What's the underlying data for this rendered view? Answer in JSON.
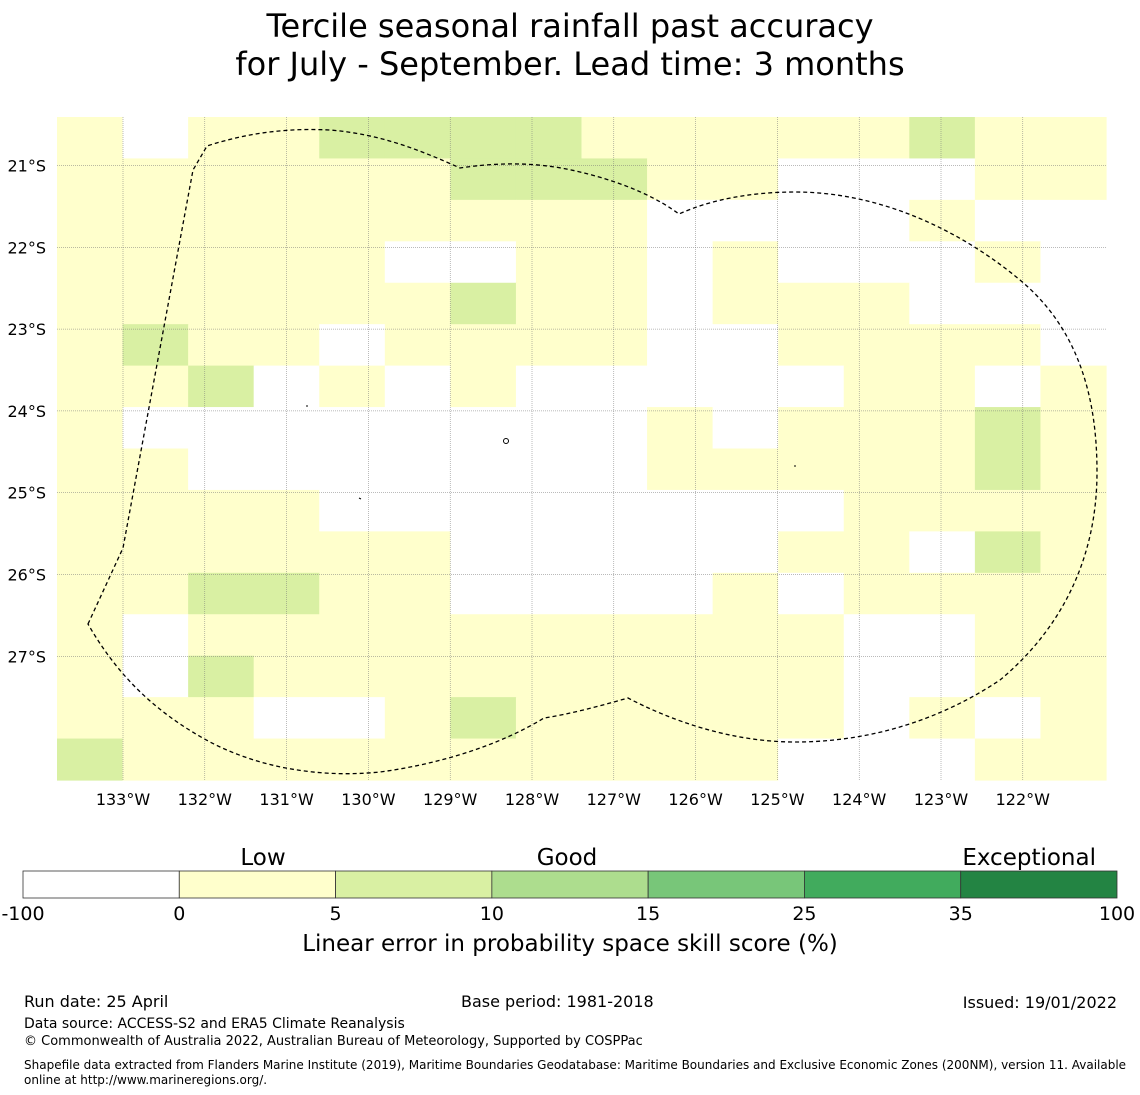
{
  "title": {
    "line1": "Tercile seasonal rainfall past accuracy",
    "line2": "for July - September. Lead time: 3 months"
  },
  "map": {
    "lon_labels": [
      "133°W",
      "132°W",
      "131°W",
      "130°W",
      "129°W",
      "128°W",
      "127°W",
      "126°W",
      "125°W",
      "124°W",
      "123°W",
      "122°W"
    ],
    "lat_labels": [
      "21°S",
      "22°S",
      "23°S",
      "24°S",
      "25°S",
      "26°S",
      "27°S"
    ],
    "cell_values": [
      [
        1,
        0,
        1,
        1,
        2,
        2,
        2,
        2,
        1,
        1,
        1,
        1,
        1,
        2,
        1,
        1
      ],
      [
        1,
        1,
        1,
        1,
        1,
        1,
        2,
        2,
        2,
        1,
        1,
        0,
        0,
        0,
        1,
        1
      ],
      [
        1,
        1,
        1,
        1,
        1,
        1,
        1,
        1,
        1,
        0,
        0,
        0,
        0,
        1,
        0,
        0
      ],
      [
        1,
        1,
        1,
        1,
        1,
        0,
        0,
        1,
        1,
        0,
        1,
        0,
        0,
        0,
        1,
        0
      ],
      [
        1,
        1,
        1,
        1,
        1,
        1,
        2,
        1,
        1,
        0,
        1,
        1,
        1,
        0,
        0,
        0
      ],
      [
        1,
        2,
        1,
        1,
        0,
        1,
        1,
        1,
        1,
        0,
        0,
        1,
        1,
        1,
        1,
        0
      ],
      [
        1,
        1,
        2,
        0,
        1,
        0,
        1,
        0,
        0,
        0,
        0,
        0,
        1,
        1,
        0,
        1
      ],
      [
        1,
        0,
        0,
        0,
        0,
        0,
        0,
        0,
        0,
        1,
        0,
        1,
        1,
        1,
        2,
        1
      ],
      [
        1,
        1,
        0,
        0,
        0,
        0,
        0,
        0,
        0,
        1,
        1,
        1,
        1,
        1,
        2,
        1
      ],
      [
        1,
        1,
        1,
        1,
        0,
        0,
        0,
        0,
        0,
        0,
        0,
        0,
        1,
        1,
        1,
        1
      ],
      [
        1,
        1,
        1,
        1,
        1,
        1,
        0,
        0,
        0,
        0,
        0,
        1,
        1,
        0,
        2,
        1
      ],
      [
        1,
        1,
        2,
        2,
        1,
        1,
        0,
        0,
        0,
        0,
        1,
        0,
        1,
        1,
        1,
        1
      ],
      [
        1,
        0,
        1,
        1,
        1,
        1,
        1,
        1,
        1,
        1,
        1,
        1,
        0,
        0,
        1,
        1
      ],
      [
        1,
        0,
        2,
        1,
        1,
        1,
        1,
        1,
        1,
        1,
        1,
        1,
        0,
        0,
        1,
        1
      ],
      [
        1,
        1,
        1,
        0,
        0,
        1,
        2,
        1,
        1,
        1,
        1,
        1,
        0,
        1,
        0,
        1
      ],
      [
        2,
        1,
        1,
        1,
        1,
        1,
        1,
        1,
        1,
        1,
        1,
        0,
        0,
        0,
        1,
        1
      ]
    ]
  },
  "colorbar": {
    "category_labels": [
      "Low",
      "Good",
      "Exceptional"
    ],
    "tick_labels": [
      "-100",
      "0",
      "5",
      "10",
      "15",
      "25",
      "35",
      "100"
    ],
    "colors": [
      "#ffffff",
      "#ffffcc",
      "#d9f0a3",
      "#addd8e",
      "#78c679",
      "#41ab5d",
      "#238443"
    ],
    "label": "Linear error in probability space skill score (%)"
  },
  "footer": {
    "run_date": "Run date: 25 April",
    "base_period": "Base period: 1981-2018",
    "issued": "Issued: 19/01/2022",
    "data_source": "Data source: ACCESS-S2 and ERA5 Climate Reanalysis",
    "copyright": "© Commonwealth of Australia 2022, Australian Bureau of Meteorology, Supported by COSPPac",
    "shapefile": "Shapefile data extracted from Flanders Marine Institute (2019), Maritime Boundaries Geodatabase: Maritime Boundaries and Exclusive Economic Zones (200NM), version 11. Available online at http://www.marineregions.org/."
  }
}
